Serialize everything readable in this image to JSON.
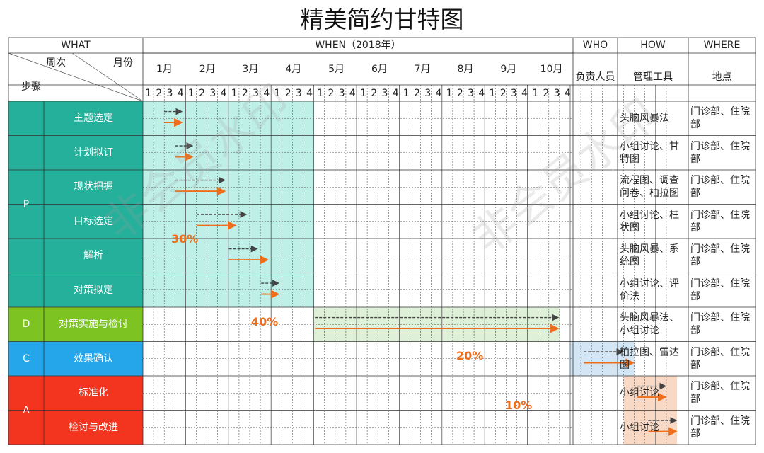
{
  "title": "精美简约甘特图",
  "header": {
    "what": "WHAT",
    "when": "WHEN（2018年）",
    "who": "WHO",
    "how": "HOW",
    "where": "WHERE",
    "corner_week": "周次",
    "corner_month": "月份",
    "corner_step": "步骤",
    "who_sub": "负责人员",
    "how_sub": "管理工具",
    "where_sub": "地点"
  },
  "months": [
    "1月",
    "2月",
    "3月",
    "4月",
    "5月",
    "6月",
    "7月",
    "8月",
    "9月",
    "10月"
  ],
  "weeks": [
    "1",
    "2",
    "3",
    "4"
  ],
  "phases": [
    {
      "label": "P",
      "color": "#24b09a",
      "rows": 6
    },
    {
      "label": "D",
      "color": "#7dc322",
      "rows": 1
    },
    {
      "label": "C",
      "color": "#25a6ea",
      "rows": 1
    },
    {
      "label": "A",
      "color": "#f3341f",
      "rows": 2
    }
  ],
  "phase_shading": [
    {
      "phase": "P",
      "start_week": 1,
      "end_week": 16,
      "color": "#bff0e8"
    },
    {
      "phase": "D",
      "start_week": 17,
      "end_week": 39,
      "color": "#dff0d8"
    },
    {
      "phase": "C",
      "start_week": 41,
      "end_week": 46,
      "color": "#d3e6f6"
    },
    {
      "phase": "A",
      "start_week": 46,
      "end_week": 50,
      "color": "#f8d9c6"
    }
  ],
  "chart_data": {
    "type": "gantt",
    "title": "精美简约甘特图",
    "time_unit": "week (4 weeks per month, Jan–Oct 2018)",
    "tasks": [
      {
        "phase": "P",
        "name": "主题选定",
        "plan": [
          3,
          4
        ],
        "actual": [
          3,
          4
        ],
        "tool": "头脑风暴法",
        "location": "门诊部、住院部"
      },
      {
        "phase": "P",
        "name": "计划拟订",
        "plan": [
          4,
          5
        ],
        "actual": [
          4,
          5
        ],
        "tool": "小组讨论、甘特图",
        "location": "门诊部、住院部"
      },
      {
        "phase": "P",
        "name": "现状把握",
        "plan": [
          4,
          8
        ],
        "actual": [
          4,
          8
        ],
        "tool": "流程图、调查问卷、柏拉图",
        "location": "门诊部、住院部"
      },
      {
        "phase": "P",
        "name": "目标选定",
        "plan": [
          6,
          10
        ],
        "actual": [
          6,
          9
        ],
        "tool": "小组讨论、柱状图",
        "location": "门诊部、住院部"
      },
      {
        "phase": "P",
        "name": "解析",
        "plan": [
          9,
          11
        ],
        "actual": [
          9,
          12
        ],
        "tool": "头脑风暴、系统图",
        "location": "门诊部、住院部"
      },
      {
        "phase": "P",
        "name": "对策拟定",
        "plan": [
          12,
          13
        ],
        "actual": [
          12,
          13
        ],
        "tool": "小组讨论、评价法",
        "location": "门诊部、住院部"
      },
      {
        "phase": "D",
        "name": "对策实施与检讨",
        "plan": [
          17,
          39
        ],
        "actual": [
          17,
          39
        ],
        "tool": "头脑风暴法、小组讨论",
        "location": "门诊部、住院部"
      },
      {
        "phase": "C",
        "name": "效果确认",
        "plan": [
          42,
          45
        ],
        "actual": [
          42,
          46
        ],
        "tool": "柏拉图、雷达图",
        "location": "门诊部、住院部"
      },
      {
        "phase": "A",
        "name": "标准化",
        "plan": [
          47,
          49
        ],
        "actual": [
          47,
          49
        ],
        "tool": "小组讨论",
        "location": "门诊部、住院部"
      },
      {
        "phase": "A",
        "name": "检讨与改进",
        "plan": [
          48,
          50
        ],
        "actual": [
          48,
          50
        ],
        "tool": "小组讨论",
        "location": "门诊部、住院部"
      }
    ],
    "percentages": [
      {
        "phase": "P",
        "value": "30%"
      },
      {
        "phase": "D",
        "value": "40%"
      },
      {
        "phase": "C",
        "value": "20%"
      },
      {
        "phase": "A",
        "value": "10%"
      }
    ],
    "plan_color": "#444444",
    "actual_color": "#ee6e1c"
  },
  "watermark": "非会员水印"
}
